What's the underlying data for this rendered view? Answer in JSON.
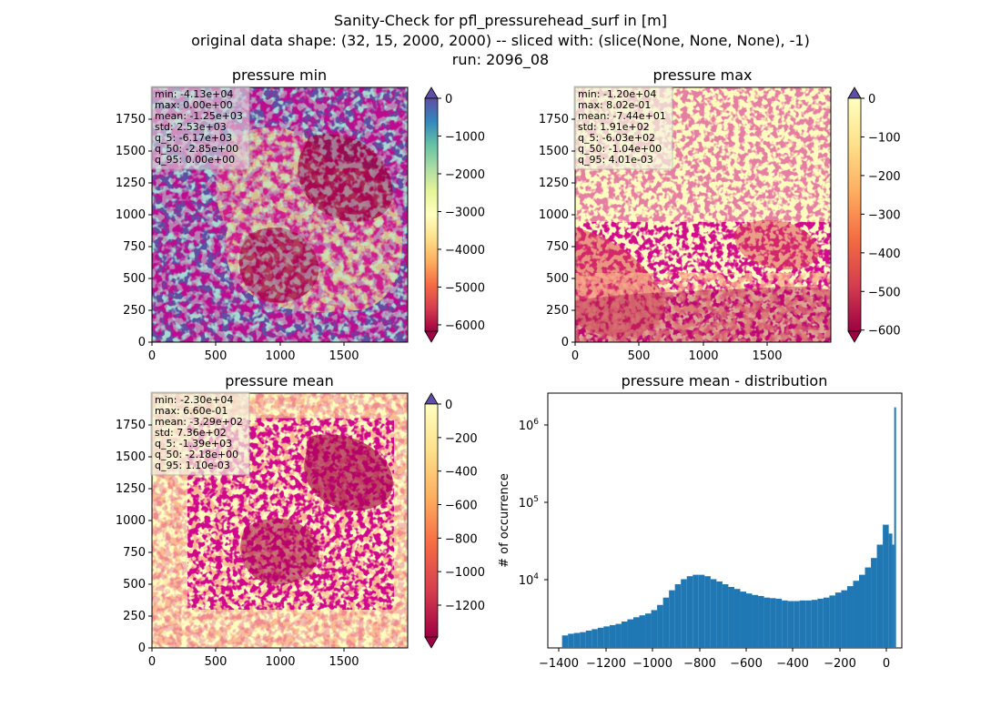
{
  "figure": {
    "title_lines": [
      "Sanity-Check for pfl_pressurehead_surf in [m]",
      "original data shape: (32, 15, 2000, 2000) -- sliced with: (slice(None, None, None), -1)",
      "run: 2096_08"
    ]
  },
  "colors": {
    "bar": "#1f77b4",
    "spectral_stops": [
      "#9e0142",
      "#d53e4f",
      "#f46d43",
      "#fdae61",
      "#fee08b",
      "#ffffbf",
      "#e6f598",
      "#abdda4",
      "#66c2a5",
      "#3288bd",
      "#5e4fa2"
    ]
  },
  "panels": {
    "min": {
      "title": "pressure min",
      "stats": [
        "min: -4.13e+04",
        "max: 0.00e+00",
        "mean: -1.25e+03",
        "std: 2.53e+03",
        "q_5: -6.17e+03",
        "q_50: -2.85e+00",
        "q_95: 0.00e+00"
      ],
      "xticks": [
        "0",
        "500",
        "1000",
        "1500"
      ],
      "yticks": [
        "0",
        "250",
        "500",
        "750",
        "1000",
        "1250",
        "1500",
        "1750"
      ],
      "colorbar": {
        "ticks": [
          "0",
          "−1000",
          "−2000",
          "−3000",
          "−4000",
          "−5000",
          "−6000"
        ],
        "range": [
          -6170,
          0
        ],
        "tick_values": [
          0,
          -1000,
          -2000,
          -3000,
          -4000,
          -5000,
          -6000
        ],
        "extend_top_color": "#5e4fa2",
        "extend_bottom_color": "#9e0142"
      }
    },
    "max": {
      "title": "pressure max",
      "stats": [
        "min: -1.20e+04",
        "max: 8.02e-01",
        "mean: -7.44e+01",
        "std: 1.91e+02",
        "q_5: -6.03e+02",
        "q_50: -1.04e+00",
        "q_95: 4.01e-03"
      ],
      "xticks": [
        "0",
        "500",
        "1000",
        "1500"
      ],
      "yticks": [
        "0",
        "250",
        "500",
        "750",
        "1000",
        "1250",
        "1500",
        "1750"
      ],
      "colorbar": {
        "ticks": [
          "0",
          "−100",
          "−200",
          "−300",
          "−400",
          "−500",
          "−600"
        ],
        "range": [
          -603,
          0
        ],
        "tick_values": [
          0,
          -100,
          -200,
          -300,
          -400,
          -500,
          -600
        ],
        "extend_top_color": "#5e4fa2",
        "extend_bottom_color": "#9e0142"
      }
    },
    "mean": {
      "title": "pressure mean",
      "stats": [
        "min: -2.30e+04",
        "max: 6.60e-01",
        "mean: -3.29e+02",
        "std: 7.36e+02",
        "q_5: -1.39e+03",
        "q_50: -2.18e+00",
        "q_95: 1.10e-03"
      ],
      "xticks": [
        "0",
        "500",
        "1000",
        "1500"
      ],
      "yticks": [
        "0",
        "250",
        "500",
        "750",
        "1000",
        "1250",
        "1500",
        "1750"
      ],
      "colorbar": {
        "ticks": [
          "0",
          "−200",
          "−400",
          "−600",
          "−800",
          "−1000",
          "−1200"
        ],
        "range": [
          -1390,
          0
        ],
        "tick_values": [
          0,
          -200,
          -400,
          -600,
          -800,
          -1000,
          -1200
        ],
        "extend_top_color": "#5e4fa2",
        "extend_bottom_color": "#9e0142"
      }
    },
    "dist": {
      "title": "pressure mean - distribution",
      "ylabel": "# of occurrence",
      "xticks": [
        "−1400",
        "−1200",
        "−1000",
        "−800",
        "−600",
        "−400",
        "−200",
        "0"
      ],
      "yticks": [
        "10",
        "10",
        "10"
      ],
      "ytick_exponents": [
        "4",
        "5",
        "6"
      ]
    }
  },
  "chart_data": [
    {
      "type": "heatmap",
      "title": "pressure min",
      "xlim": [
        0,
        2000
      ],
      "ylim": [
        0,
        2000
      ],
      "xticks": [
        0,
        500,
        1000,
        1500
      ],
      "yticks": [
        0,
        250,
        500,
        750,
        1000,
        1250,
        1500,
        1750
      ],
      "colormap": "Spectral",
      "color_range": [
        -6170,
        0
      ]
    },
    {
      "type": "heatmap",
      "title": "pressure max",
      "xlim": [
        0,
        2000
      ],
      "ylim": [
        0,
        2000
      ],
      "xticks": [
        0,
        500,
        1000,
        1500
      ],
      "yticks": [
        0,
        250,
        500,
        750,
        1000,
        1250,
        1500,
        1750
      ],
      "colormap": "Spectral",
      "color_range": [
        -603,
        0
      ]
    },
    {
      "type": "heatmap",
      "title": "pressure mean",
      "xlim": [
        0,
        2000
      ],
      "ylim": [
        0,
        2000
      ],
      "xticks": [
        0,
        500,
        1000,
        1500
      ],
      "yticks": [
        0,
        250,
        500,
        750,
        1000,
        1250,
        1500,
        1750
      ],
      "colormap": "Spectral",
      "color_range": [
        -1390,
        0
      ]
    },
    {
      "type": "bar",
      "title": "pressure mean - distribution",
      "ylabel": "# of occurrence",
      "yscale": "log",
      "xlim": [
        -1460,
        30
      ],
      "ylim": [
        1300,
        3000000
      ],
      "xticks": [
        -1400,
        -1200,
        -1000,
        -800,
        -600,
        -400,
        -200,
        0
      ],
      "histogram": {
        "x": [
          -1400,
          -1375,
          -1350,
          -1325,
          -1300,
          -1275,
          -1250,
          -1225,
          -1200,
          -1175,
          -1150,
          -1125,
          -1100,
          -1075,
          -1050,
          -1025,
          -1000,
          -975,
          -950,
          -925,
          -900,
          -875,
          -850,
          -825,
          -800,
          -775,
          -750,
          -725,
          -700,
          -675,
          -650,
          -625,
          -600,
          -575,
          -550,
          -525,
          -500,
          -475,
          -450,
          -425,
          -400,
          -375,
          -350,
          -325,
          -300,
          -275,
          -250,
          -225,
          -200,
          -175,
          -150,
          -125,
          -100,
          -75,
          -50,
          -25,
          -10,
          -2
        ],
        "counts": [
          1900,
          2000,
          2050,
          2100,
          2200,
          2300,
          2400,
          2500,
          2600,
          2700,
          2900,
          3100,
          3300,
          3500,
          3700,
          4100,
          4800,
          6000,
          7500,
          9000,
          10500,
          11500,
          12000,
          12000,
          11500,
          10500,
          9800,
          9000,
          8300,
          7800,
          7200,
          6800,
          6500,
          6300,
          6000,
          5900,
          5800,
          5500,
          5400,
          5400,
          5500,
          5500,
          5600,
          5800,
          6000,
          6400,
          7000,
          7500,
          8500,
          10000,
          12000,
          15000,
          20000,
          30000,
          55000,
          42000,
          30000,
          1950000
        ]
      }
    }
  ]
}
